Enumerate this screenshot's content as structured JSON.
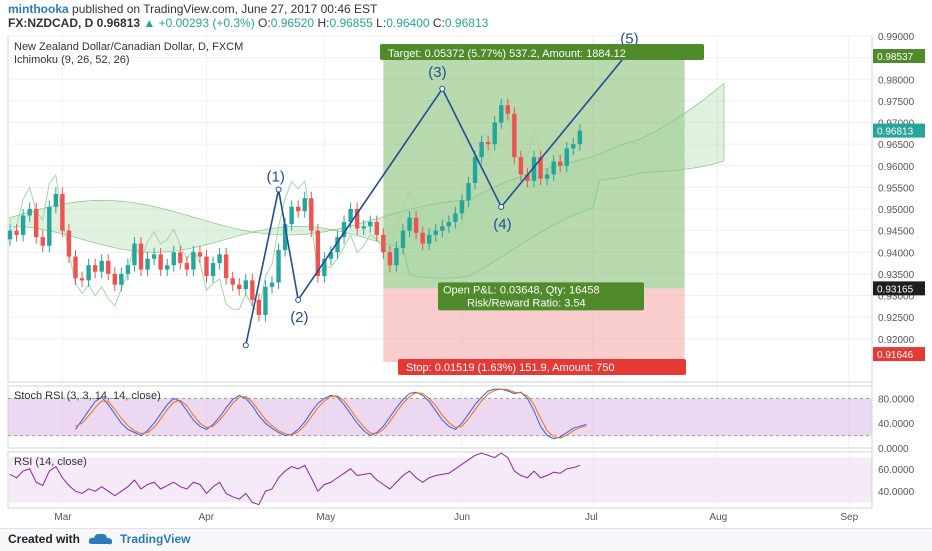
{
  "header": {
    "user": "minthooka",
    "published": "published on TradingView.com, June 27, 2017 00:46 EST",
    "symbol": "FX:NZDCAD, D",
    "last": "0.96813",
    "change": "▲ +0.00293 (+0.3%)",
    "open_label": "O:",
    "open": "0.96520",
    "high_label": "H:",
    "high": "0.96855",
    "low_label": "L:",
    "low": "0.96400",
    "close_label": "C:",
    "close": "0.96813"
  },
  "footer": {
    "created_with": "Created with",
    "brand": "TradingView"
  },
  "colors": {
    "up": "#26a69a",
    "down": "#ef5350",
    "wave": "#1f4e96",
    "target": "#4f8a2b",
    "stop": "#e53935"
  },
  "chart_data": [
    {
      "type": "candlestick",
      "title": "New Zealand Dollar/Canadian Dollar, D, FXCM",
      "indicator": "Ichimoku (9, 26, 52, 26)",
      "ylim": [
        0.91,
        0.99
      ],
      "y_ticks": [
        "0.99000",
        "0.98500",
        "0.98000",
        "0.97500",
        "0.97000",
        "0.96500",
        "0.96000",
        "0.95500",
        "0.95000",
        "0.94500",
        "0.94000",
        "0.93500",
        "0.93000",
        "0.92500",
        "0.92000"
      ],
      "x_ticks": [
        "Mar",
        "Apr",
        "May",
        "Jun",
        "Jul",
        "Aug",
        "Sep"
      ],
      "price_tags": [
        {
          "label": "0.98537",
          "value": 0.98537,
          "color": "#4f8a2b"
        },
        {
          "label": "0.96813",
          "value": 0.96813,
          "color": "#26a69a"
        },
        {
          "label": "0.93165",
          "value": 0.93165,
          "color": "#1e1e1e"
        },
        {
          "label": "0.91646",
          "value": 0.91646,
          "color": "#e53935"
        }
      ],
      "closes": [
        0.945,
        0.944,
        0.9485,
        0.95,
        0.9435,
        0.9415,
        0.9505,
        0.9535,
        0.945,
        0.939,
        0.934,
        0.9335,
        0.937,
        0.9355,
        0.938,
        0.935,
        0.9325,
        0.935,
        0.937,
        0.942,
        0.936,
        0.9385,
        0.9395,
        0.936,
        0.937,
        0.94,
        0.9375,
        0.936,
        0.94,
        0.939,
        0.9345,
        0.9375,
        0.9395,
        0.934,
        0.9325,
        0.9315,
        0.9335,
        0.929,
        0.9255,
        0.932,
        0.933,
        0.9405,
        0.9465,
        0.9505,
        0.9495,
        0.9525,
        0.945,
        0.9345,
        0.9385,
        0.94,
        0.9435,
        0.947,
        0.95,
        0.9455,
        0.946,
        0.947,
        0.944,
        0.94,
        0.937,
        0.941,
        0.945,
        0.948,
        0.9445,
        0.942,
        0.944,
        0.945,
        0.946,
        0.947,
        0.949,
        0.952,
        0.956,
        0.962,
        0.9655,
        0.965,
        0.97,
        0.974,
        0.972,
        0.962,
        0.958,
        0.9565,
        0.962,
        0.957,
        0.958,
        0.961,
        0.96,
        0.964,
        0.965,
        0.9681
      ],
      "annotations": [
        {
          "label": "(1)",
          "date_index": 41,
          "price": 0.9545
        },
        {
          "label": "(2)",
          "date_index": 44,
          "price": 0.929
        },
        {
          "label": "(3)",
          "date_index": 66,
          "price": 0.9778
        },
        {
          "label": "(4)",
          "date_index": 75,
          "price": 0.9505
        },
        {
          "label": "(5)",
          "date_index": 95,
          "price": 0.9873
        }
      ],
      "position": {
        "target_text": "Target: 0.05372 (5.77%) 537.2, Amount: 1884.12",
        "stop_text": "Stop: 0.01519 (1.63%) 151.9, Amount: 750",
        "pnl_text": "Open P&L: 0.03648, Qty: 16458",
        "rr_text": "Risk/Reward Ratio: 3.54",
        "entry": 0.93165,
        "target": 0.98537,
        "stop": 0.91646
      }
    },
    {
      "type": "line",
      "title": "Stoch RSI (3, 3, 14, 14, close)",
      "ylim": [
        0,
        100
      ],
      "y_ticks": [
        "80.0000",
        "40.0000",
        "0.0000"
      ],
      "bands": [
        80,
        20
      ],
      "series": [
        {
          "name": "",
          "color": "#2962ff",
          "values": [
            30,
            45,
            60,
            75,
            82,
            70,
            55,
            40,
            30,
            25,
            20,
            28,
            40,
            55,
            70,
            80,
            75,
            60,
            45,
            35,
            30,
            38,
            50,
            65,
            78,
            85,
            80,
            68,
            52,
            40,
            32,
            25,
            20,
            22,
            30,
            42,
            58,
            72,
            80,
            85,
            82,
            70,
            55,
            40,
            28,
            20,
            25,
            35,
            50,
            65,
            78,
            88,
            90,
            85,
            75,
            60,
            45,
            35,
            30,
            40,
            55,
            70,
            82,
            92,
            95,
            95,
            92,
            88,
            90,
            80,
            60,
            35,
            20,
            15,
            18,
            25,
            32,
            35,
            38
          ]
        },
        {
          "name": "",
          "color": "#ff6d00",
          "values": [
            35,
            40,
            52,
            65,
            76,
            75,
            62,
            48,
            36,
            28,
            23,
            25,
            33,
            47,
            62,
            74,
            77,
            68,
            53,
            40,
            33,
            35,
            45,
            58,
            72,
            82,
            83,
            74,
            60,
            46,
            36,
            28,
            23,
            21,
            26,
            36,
            50,
            65,
            76,
            83,
            84,
            76,
            62,
            47,
            34,
            24,
            23,
            30,
            43,
            58,
            72,
            83,
            89,
            88,
            80,
            68,
            53,
            41,
            33,
            35,
            47,
            62,
            76,
            87,
            93,
            95,
            94,
            90,
            89,
            84,
            70,
            48,
            28,
            18,
            16,
            21,
            28,
            33,
            36
          ]
        }
      ]
    },
    {
      "type": "line",
      "title": "RSI (14, close)",
      "ylim": [
        25,
        75
      ],
      "y_ticks": [
        "60.0000",
        "40.0000"
      ],
      "series": [
        {
          "name": "",
          "color": "#8e24aa",
          "values": [
            55,
            52,
            58,
            60,
            48,
            45,
            58,
            62,
            52,
            45,
            40,
            38,
            42,
            40,
            44,
            40,
            36,
            40,
            44,
            50,
            42,
            46,
            48,
            42,
            45,
            48,
            44,
            42,
            48,
            46,
            38,
            44,
            48,
            38,
            35,
            33,
            38,
            30,
            28,
            40,
            42,
            52,
            58,
            62,
            60,
            63,
            52,
            40,
            46,
            48,
            52,
            56,
            60,
            54,
            55,
            56,
            50,
            46,
            42,
            48,
            54,
            58,
            52,
            48,
            52,
            54,
            55,
            56,
            60,
            64,
            68,
            72,
            74,
            72,
            70,
            74,
            70,
            58,
            54,
            52,
            58,
            52,
            54,
            57,
            56,
            60,
            61,
            63
          ]
        }
      ]
    }
  ]
}
